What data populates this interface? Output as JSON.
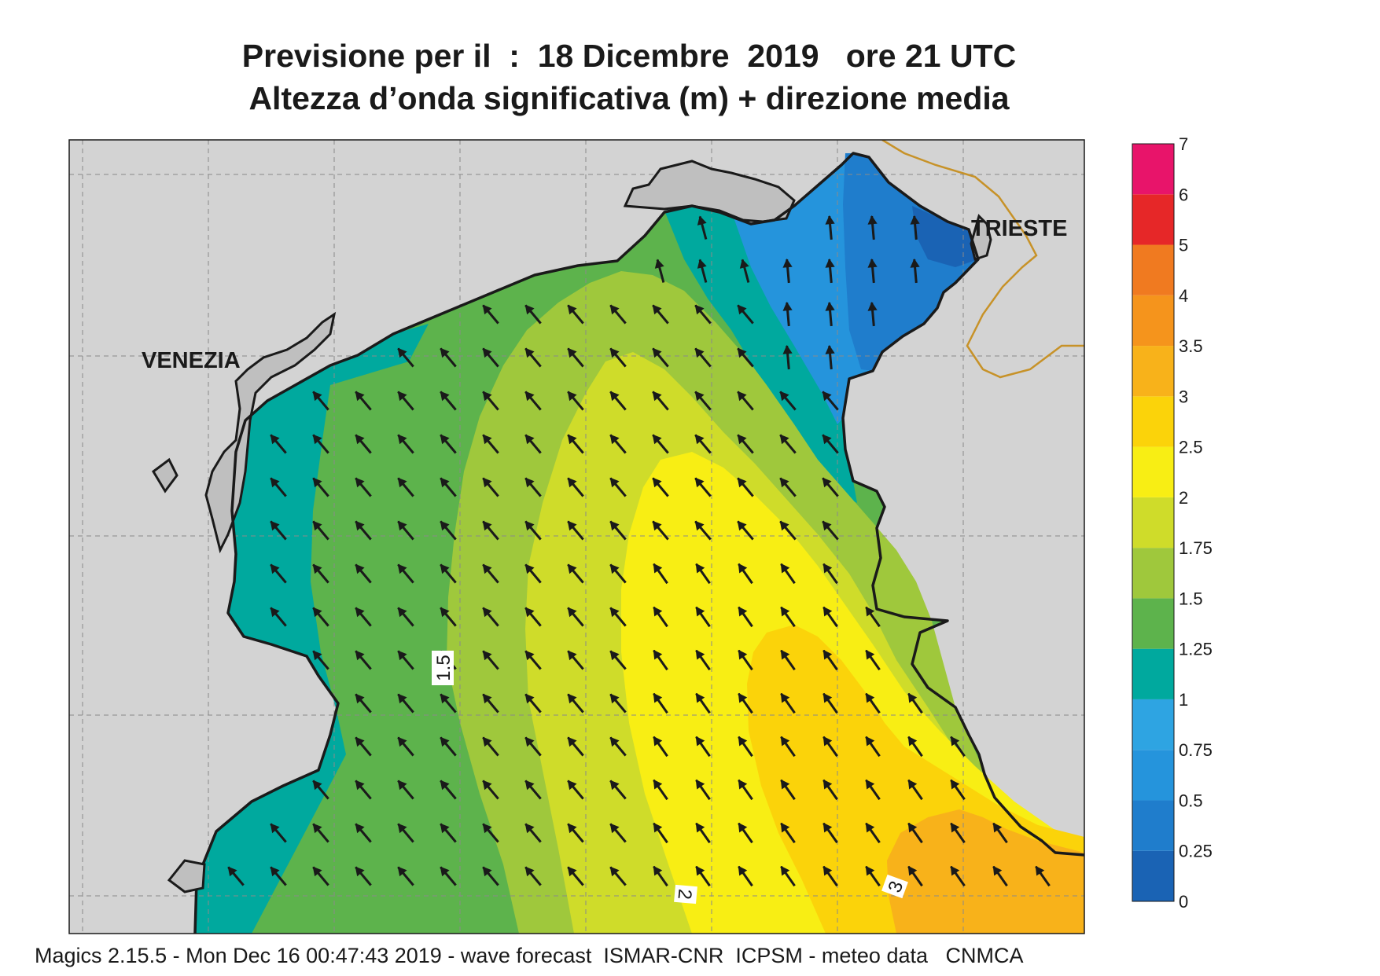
{
  "header": {
    "line1": "Previsione per il  :  18 Dicembre  2019   ore 21 UTC",
    "line2": "Altezza d’onda significativa (m) + direzione media"
  },
  "map": {
    "places": [
      "VENEZIA",
      "TRIESTE"
    ],
    "contour_labels": [
      "1.5",
      "2",
      "3"
    ],
    "mean_wave_direction": "from south-east, towards north-west"
  },
  "legend": {
    "levels": [
      "0",
      "0.25",
      "0.5",
      "0.75",
      "1",
      "1.25",
      "1.5",
      "1.75",
      "2",
      "2.5",
      "3",
      "3.5",
      "4",
      "5",
      "6",
      "7"
    ],
    "colors": [
      "#1a63b4",
      "#1f7dcc",
      "#2594dc",
      "#2ea4e2",
      "#00a99e",
      "#5db34c",
      "#9fc83c",
      "#cfdc2a",
      "#f8ee14",
      "#fbd30a",
      "#f8b21a",
      "#f5941c",
      "#f07a20",
      "#e62728",
      "#e8146a"
    ]
  },
  "footer": {
    "text": "Magics 2.15.5 - Mon Dec 16 00:47:43 2019 - wave forecast  ISMAR-CNR  ICPSM - meteo data   CNMCA"
  }
}
